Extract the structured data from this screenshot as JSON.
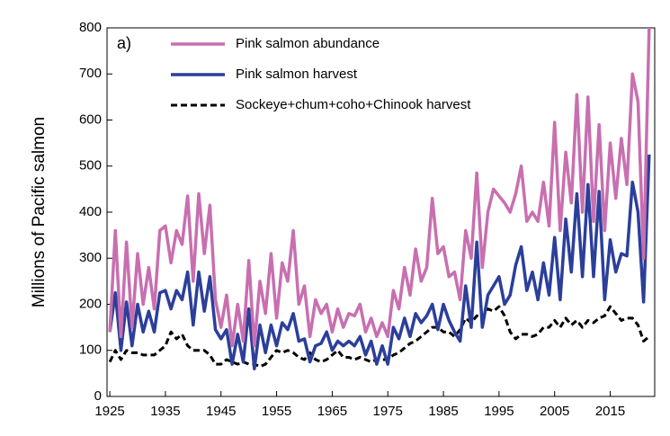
{
  "chart_data": {
    "type": "line",
    "annotation": "a)",
    "y_label": "Millions of Pacific salmon",
    "x": [
      1925,
      1926,
      1927,
      1928,
      1929,
      1930,
      1931,
      1932,
      1933,
      1934,
      1935,
      1936,
      1937,
      1938,
      1939,
      1940,
      1941,
      1942,
      1943,
      1944,
      1945,
      1946,
      1947,
      1948,
      1949,
      1950,
      1951,
      1952,
      1953,
      1954,
      1955,
      1956,
      1957,
      1958,
      1959,
      1960,
      1961,
      1962,
      1963,
      1964,
      1965,
      1966,
      1967,
      1968,
      1969,
      1970,
      1971,
      1972,
      1973,
      1974,
      1975,
      1976,
      1977,
      1978,
      1979,
      1980,
      1981,
      1982,
      1983,
      1984,
      1985,
      1986,
      1987,
      1988,
      1989,
      1990,
      1991,
      1992,
      1993,
      1994,
      1995,
      1996,
      1997,
      1998,
      1999,
      2000,
      2001,
      2002,
      2003,
      2004,
      2005,
      2006,
      2007,
      2008,
      2009,
      2010,
      2011,
      2012,
      2013,
      2014,
      2015,
      2016,
      2017,
      2018,
      2019,
      2020,
      2021,
      2022
    ],
    "series": [
      {
        "name": "Pink salmon abundance",
        "color": "#c86fb0",
        "dash": false,
        "values": [
          140,
          360,
          130,
          335,
          150,
          310,
          200,
          280,
          190,
          360,
          370,
          290,
          360,
          330,
          435,
          250,
          440,
          310,
          415,
          210,
          150,
          220,
          110,
          200,
          120,
          295,
          110,
          250,
          180,
          310,
          170,
          290,
          250,
          360,
          200,
          240,
          130,
          210,
          180,
          200,
          140,
          190,
          150,
          180,
          175,
          200,
          140,
          170,
          130,
          160,
          130,
          230,
          190,
          280,
          220,
          320,
          250,
          280,
          430,
          310,
          325,
          260,
          270,
          210,
          360,
          300,
          485,
          280,
          400,
          450,
          435,
          420,
          400,
          440,
          500,
          380,
          400,
          380,
          465,
          370,
          595,
          360,
          530,
          420,
          655,
          400,
          650,
          380,
          590,
          360,
          550,
          430,
          560,
          460,
          700,
          640,
          300,
          800
        ]
      },
      {
        "name": "Pink salmon harvest",
        "color": "#2b3f9a",
        "dash": false,
        "values": [
          140,
          225,
          100,
          205,
          110,
          200,
          140,
          185,
          140,
          225,
          230,
          190,
          230,
          210,
          270,
          155,
          270,
          185,
          260,
          145,
          125,
          145,
          70,
          135,
          75,
          190,
          60,
          155,
          95,
          155,
          110,
          160,
          145,
          180,
          120,
          125,
          75,
          110,
          115,
          140,
          100,
          120,
          110,
          120,
          110,
          130,
          90,
          120,
          70,
          110,
          70,
          150,
          125,
          170,
          130,
          180,
          160,
          175,
          200,
          145,
          200,
          165,
          140,
          120,
          240,
          150,
          335,
          150,
          220,
          240,
          260,
          200,
          220,
          285,
          325,
          230,
          270,
          210,
          290,
          220,
          345,
          210,
          385,
          270,
          440,
          260,
          460,
          260,
          445,
          210,
          340,
          270,
          310,
          305,
          465,
          400,
          205,
          525
        ]
      },
      {
        "name": "Sockeye+chum+coho+Chinook harvest",
        "color": "#000000",
        "dash": true,
        "values": [
          75,
          100,
          80,
          100,
          95,
          95,
          90,
          90,
          90,
          100,
          110,
          140,
          125,
          135,
          110,
          100,
          100,
          100,
          90,
          70,
          70,
          80,
          75,
          70,
          75,
          70,
          70,
          65,
          70,
          85,
          100,
          95,
          100,
          95,
          85,
          80,
          95,
          80,
          75,
          80,
          90,
          100,
          85,
          85,
          80,
          85,
          80,
          75,
          80,
          80,
          80,
          90,
          95,
          105,
          115,
          120,
          130,
          140,
          150,
          150,
          140,
          140,
          130,
          145,
          170,
          160,
          175,
          170,
          190,
          185,
          195,
          175,
          140,
          125,
          135,
          135,
          130,
          135,
          150,
          150,
          165,
          150,
          170,
          155,
          165,
          150,
          165,
          160,
          170,
          175,
          195,
          180,
          165,
          170,
          170,
          155,
          120,
          130
        ]
      }
    ],
    "xlim": [
      1924.5,
      2023
    ],
    "xticks": [
      1925,
      1935,
      1945,
      1955,
      1965,
      1975,
      1985,
      1995,
      2005,
      2015
    ],
    "ylim": [
      0,
      800
    ],
    "yticks": [
      0,
      100,
      200,
      300,
      400,
      500,
      600,
      700,
      800
    ],
    "legend": "top"
  }
}
